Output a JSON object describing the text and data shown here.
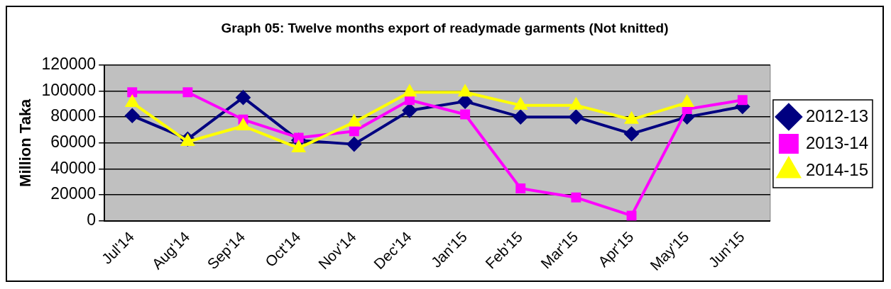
{
  "chart_data": {
    "type": "line",
    "title": "Graph 05: Twelve months export of readymade garments (Not knitted)",
    "ylabel": "Million Taka",
    "categories": [
      "Jul'14",
      "Aug'14",
      "Sep'14",
      "Oct'14",
      "Nov'14",
      "Dec'14",
      "Jan'15",
      "Feb'15",
      "Mar'15",
      "Apr'15",
      "May'15",
      "Jun'15"
    ],
    "series": [
      {
        "name": "2012-13",
        "color": "#000080",
        "marker": "diamond",
        "values": [
          81000,
          63000,
          95000,
          62000,
          59000,
          85000,
          92000,
          80000,
          80000,
          67000,
          80000,
          88000
        ]
      },
      {
        "name": "2013-14",
        "color": "#ff00ff",
        "marker": "square",
        "values": [
          99000,
          99000,
          78000,
          64000,
          69000,
          93000,
          82000,
          25000,
          18000,
          4000,
          86000,
          93000
        ]
      },
      {
        "name": "2014-15",
        "color": "#ffff00",
        "marker": "triangle",
        "values": [
          91000,
          61000,
          73000,
          56000,
          76000,
          99000,
          99000,
          89000,
          89000,
          78000,
          91000,
          null
        ]
      }
    ],
    "ylim": [
      0,
      120000
    ],
    "yticks": [
      0,
      20000,
      40000,
      60000,
      80000,
      100000,
      120000
    ],
    "grid": "y",
    "legend": "right",
    "line_style": "solid"
  }
}
